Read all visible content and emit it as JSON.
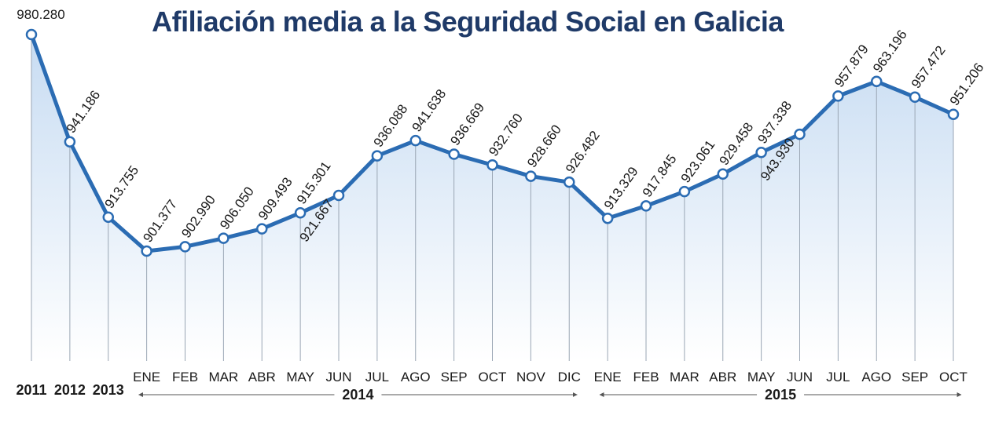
{
  "chart_data": {
    "type": "line",
    "title": "Afiliación media a la Seguridad Social en Galicia",
    "categories": [
      "2011",
      "2012",
      "2013",
      "ENE",
      "FEB",
      "MAR",
      "ABR",
      "MAY",
      "JUN",
      "JUL",
      "AGO",
      "SEP",
      "OCT",
      "NOV",
      "DIC",
      "ENE",
      "FEB",
      "MAR",
      "ABR",
      "MAY",
      "JUN",
      "JUL",
      "AGO",
      "SEP",
      "OCT"
    ],
    "x_groups": [
      "2014",
      "2015"
    ],
    "series": [
      {
        "color": "#2b6cb3",
        "values": [
          980280,
          941186,
          913755,
          901377,
          902990,
          906050,
          909493,
          915301,
          921667,
          936088,
          941638,
          936669,
          932760,
          928660,
          926482,
          913329,
          917845,
          923061,
          929458,
          937338,
          943930,
          957879,
          963196,
          957472,
          951206
        ],
        "value_labels": [
          "980.280",
          "941.186",
          "913.755",
          "901.377",
          "902.990",
          "906.050",
          "909.493",
          "915.301",
          "921.667",
          "936.088",
          "941.638",
          "936.669",
          "932.760",
          "928.660",
          "926.482",
          "913.329",
          "917.845",
          "923.061",
          "929.458",
          "937.338",
          "943.930",
          "957.879",
          "963.196",
          "957.472",
          "951.206"
        ]
      }
    ]
  }
}
